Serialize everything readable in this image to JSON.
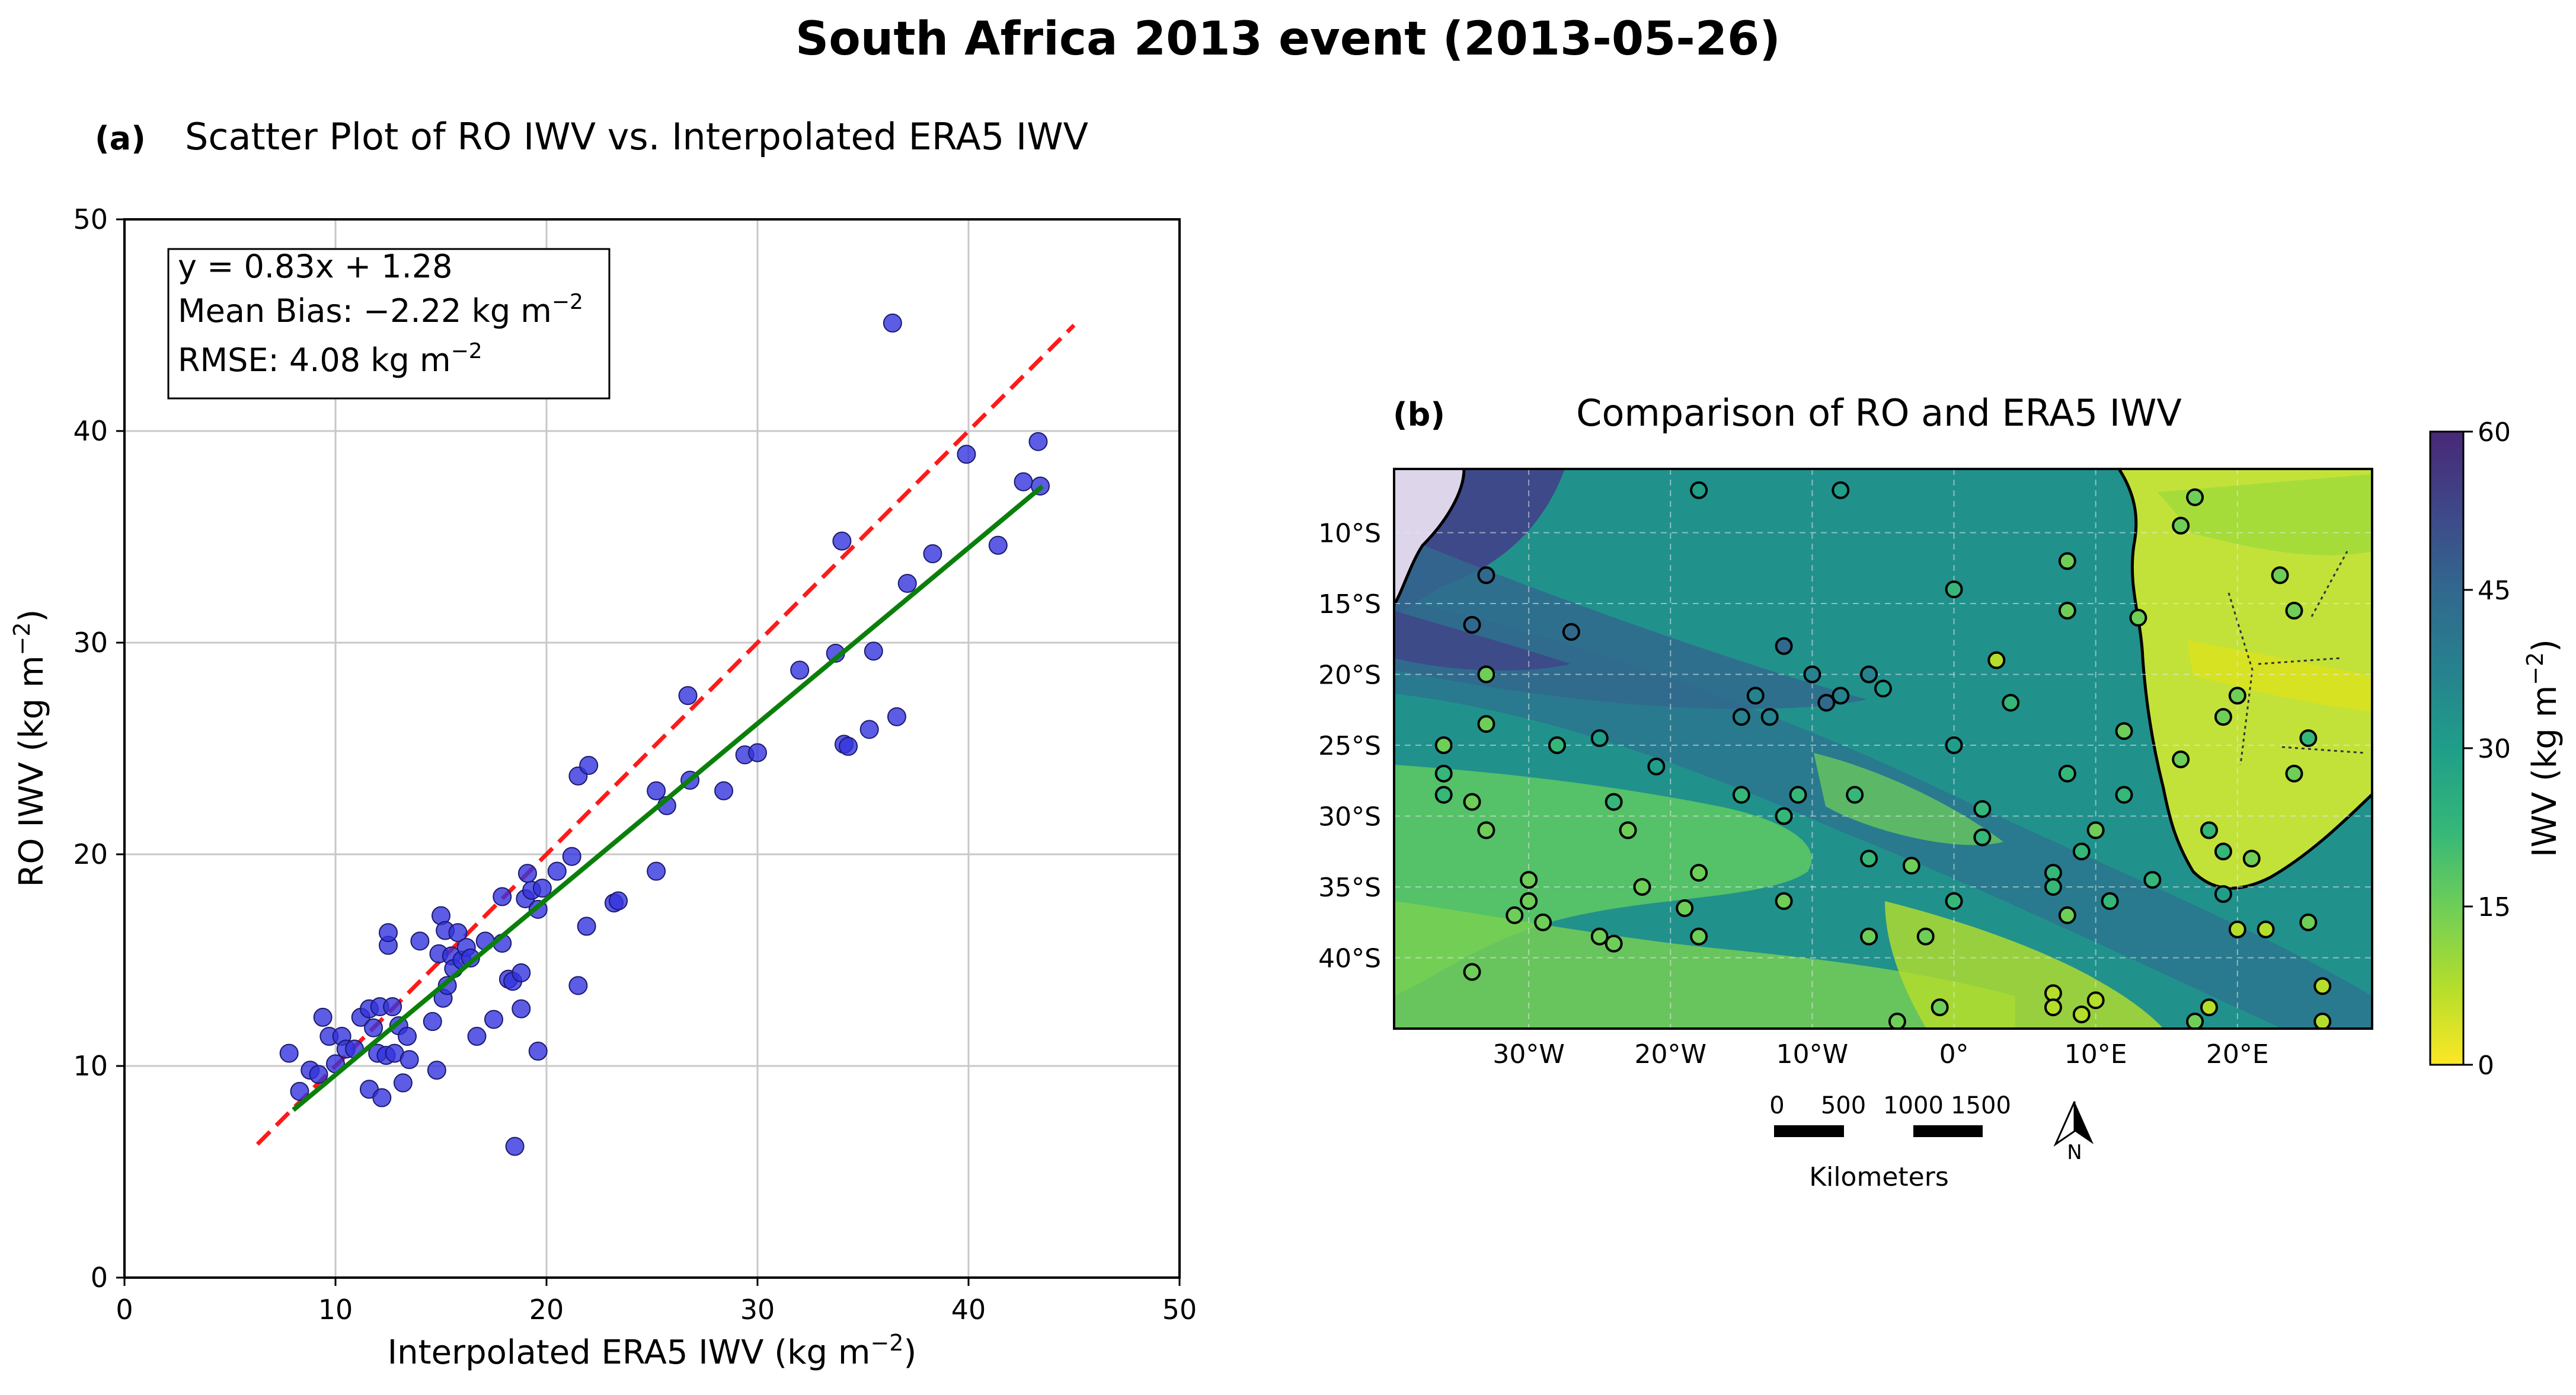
{
  "figure": {
    "title": "South Africa 2013 event (2013-05-26)"
  },
  "colors": {
    "points": "#3333dd",
    "fit_line": "#0a7f0a",
    "one_to_one": "#ff1a1a",
    "grid": "#c8c8c8"
  },
  "panel_a": {
    "panel_label": "(a)",
    "subtitle": "Scatter Plot of RO IWV vs. Interpolated ERA5 IWV",
    "stats": {
      "equation": "y = 0.83x + 1.28",
      "bias_label": "Mean Bias: −2.22 kg m",
      "rmse_label": "RMSE: 4.08 kg m",
      "unit_exponent": "−2"
    }
  },
  "panel_b": {
    "panel_label": "(b)",
    "subtitle": "Comparison of RO and ERA5 IWV",
    "colorbar": {
      "label": "IWV (kg m",
      "label_exponent": "−2",
      "label_close": ")",
      "ticks": [
        "0",
        "15",
        "30",
        "45",
        "60"
      ],
      "min": 0,
      "max": 60,
      "colors": [
        "#fde725",
        "#b5de2b",
        "#6ece58",
        "#35b779",
        "#1f9e89",
        "#26828e",
        "#31688e",
        "#3e4989",
        "#482878",
        "#440154"
      ]
    },
    "lat_ticks": [
      "10°S",
      "15°S",
      "20°S",
      "25°S",
      "30°S",
      "35°S",
      "40°S"
    ],
    "lon_ticks": [
      "30°W",
      "20°W",
      "10°W",
      "0°",
      "10°E",
      "20°E"
    ],
    "scale_bar": {
      "labels": [
        "0",
        "500",
        "1000",
        "1500"
      ],
      "unit": "Kilometers"
    },
    "north_arrow": {
      "label": "N"
    },
    "ro_points": [
      {
        "lon": -18,
        "lat": -7,
        "value": 28
      },
      {
        "lon": -8,
        "lat": -7,
        "value": 27
      },
      {
        "lon": -33,
        "lat": -13,
        "value": 38
      },
      {
        "lon": -34,
        "lat": -16.5,
        "value": 40
      },
      {
        "lon": -27,
        "lat": -17,
        "value": 39
      },
      {
        "lon": -33,
        "lat": -20,
        "value": 16
      },
      {
        "lon": -12,
        "lat": -18,
        "value": 36
      },
      {
        "lon": -10,
        "lat": -20,
        "value": 33
      },
      {
        "lon": -6,
        "lat": -20,
        "value": 30
      },
      {
        "lon": -5,
        "lat": -21,
        "value": 28
      },
      {
        "lon": -9,
        "lat": -22,
        "value": 36
      },
      {
        "lon": -14,
        "lat": -21.5,
        "value": 34
      },
      {
        "lon": -15,
        "lat": -23,
        "value": 32
      },
      {
        "lon": -13,
        "lat": -23,
        "value": 33
      },
      {
        "lon": -8,
        "lat": -21.5,
        "value": 35
      },
      {
        "lon": 0,
        "lat": -14,
        "value": 22
      },
      {
        "lon": 8,
        "lat": -12,
        "value": 14
      },
      {
        "lon": 8,
        "lat": -15.5,
        "value": 14
      },
      {
        "lon": 3,
        "lat": -19,
        "value": 8
      },
      {
        "lon": 4,
        "lat": -22,
        "value": 22
      },
      {
        "lon": 0,
        "lat": -25,
        "value": 26
      },
      {
        "lon": -33,
        "lat": -23.5,
        "value": 16
      },
      {
        "lon": -28,
        "lat": -25,
        "value": 22
      },
      {
        "lon": -25,
        "lat": -24.5,
        "value": 26
      },
      {
        "lon": -36,
        "lat": -25,
        "value": 15
      },
      {
        "lon": -36,
        "lat": -27,
        "value": 18
      },
      {
        "lon": -21,
        "lat": -26.5,
        "value": 25
      },
      {
        "lon": -36,
        "lat": -28.5,
        "value": 18
      },
      {
        "lon": -34,
        "lat": -29,
        "value": 17
      },
      {
        "lon": -24,
        "lat": -29,
        "value": 18
      },
      {
        "lon": -15,
        "lat": -28.5,
        "value": 19
      },
      {
        "lon": -11,
        "lat": -28.5,
        "value": 21
      },
      {
        "lon": -12,
        "lat": -30,
        "value": 20
      },
      {
        "lon": -7,
        "lat": -28.5,
        "value": 19
      },
      {
        "lon": -33,
        "lat": -31,
        "value": 15
      },
      {
        "lon": -23,
        "lat": -31,
        "value": 15
      },
      {
        "lon": 8,
        "lat": -27,
        "value": 22
      },
      {
        "lon": 12,
        "lat": -24,
        "value": 15
      },
      {
        "lon": 12,
        "lat": -28.5,
        "value": 20
      },
      {
        "lon": 10,
        "lat": -31,
        "value": 17
      },
      {
        "lon": 2,
        "lat": -29.5,
        "value": 19
      },
      {
        "lon": 2,
        "lat": -31.5,
        "value": 18
      },
      {
        "lon": 16,
        "lat": -26,
        "value": 14
      },
      {
        "lon": 18,
        "lat": -31,
        "value": 18
      },
      {
        "lon": 19,
        "lat": -32.5,
        "value": 21
      },
      {
        "lon": 19,
        "lat": -35.5,
        "value": 26
      },
      {
        "lon": 21,
        "lat": -33,
        "value": 17
      },
      {
        "lon": 14,
        "lat": -34.5,
        "value": 19
      },
      {
        "lon": 9,
        "lat": -32.5,
        "value": 21
      },
      {
        "lon": 7,
        "lat": -34,
        "value": 19
      },
      {
        "lon": 7,
        "lat": -35,
        "value": 20
      },
      {
        "lon": 11,
        "lat": -36,
        "value": 19
      },
      {
        "lon": 8,
        "lat": -37,
        "value": 15
      },
      {
        "lon": -6,
        "lat": -33,
        "value": 18
      },
      {
        "lon": -3,
        "lat": -33.5,
        "value": 17
      },
      {
        "lon": 0,
        "lat": -36,
        "value": 18
      },
      {
        "lon": -18,
        "lat": -34,
        "value": 13
      },
      {
        "lon": -19,
        "lat": -36.5,
        "value": 13
      },
      {
        "lon": -22,
        "lat": -35,
        "value": 14
      },
      {
        "lon": -18,
        "lat": -38.5,
        "value": 12
      },
      {
        "lon": -12,
        "lat": -36,
        "value": 16
      },
      {
        "lon": -30,
        "lat": -34.5,
        "value": 13
      },
      {
        "lon": -30,
        "lat": -36,
        "value": 14
      },
      {
        "lon": -31,
        "lat": -37,
        "value": 12
      },
      {
        "lon": -29,
        "lat": -37.5,
        "value": 13
      },
      {
        "lon": -25,
        "lat": -38.5,
        "value": 13
      },
      {
        "lon": -24,
        "lat": -39,
        "value": 12
      },
      {
        "lon": -34,
        "lat": -41,
        "value": 12
      },
      {
        "lon": -6,
        "lat": -38.5,
        "value": 14
      },
      {
        "lon": -2,
        "lat": -38.5,
        "value": 14
      },
      {
        "lon": 20,
        "lat": -38,
        "value": 9
      },
      {
        "lon": 22,
        "lat": -38,
        "value": 10
      },
      {
        "lon": 25,
        "lat": -37.5,
        "value": 12
      },
      {
        "lon": 26,
        "lat": -42,
        "value": 11
      },
      {
        "lon": 26,
        "lat": -44.5,
        "value": 11
      },
      {
        "lon": 7,
        "lat": -42.5,
        "value": 9
      },
      {
        "lon": 7,
        "lat": -43.5,
        "value": 10
      },
      {
        "lon": 9,
        "lat": -44,
        "value": 10
      },
      {
        "lon": 10,
        "lat": -43,
        "value": 11
      },
      {
        "lon": 17,
        "lat": -44.5,
        "value": 12
      },
      {
        "lon": 18,
        "lat": -43.5,
        "value": 11
      },
      {
        "lon": -4,
        "lat": -44.5,
        "value": 12
      },
      {
        "lon": -1,
        "lat": -43.5,
        "value": 13
      },
      {
        "lon": 17,
        "lat": -7.5,
        "value": 15
      },
      {
        "lon": 23,
        "lat": -13,
        "value": 17
      },
      {
        "lon": 24,
        "lat": -15.5,
        "value": 16
      },
      {
        "lon": 20,
        "lat": -21.5,
        "value": 12
      },
      {
        "lon": 19,
        "lat": -23,
        "value": 13
      },
      {
        "lon": 25,
        "lat": -24.5,
        "value": 18
      },
      {
        "lon": 24,
        "lat": -27,
        "value": 16
      },
      {
        "lon": 13,
        "lat": -16,
        "value": 14
      },
      {
        "lon": 16,
        "lat": -9.5,
        "value": 16
      }
    ]
  },
  "chart_data": [
    {
      "type": "scatter",
      "panel": "(a)",
      "title": "Scatter Plot of RO IWV vs. Interpolated ERA5 IWV",
      "xlabel": "Interpolated ERA5 IWV (kg m",
      "ylabel": "RO IWV (kg m",
      "label_exponent": "−2",
      "label_close": ")",
      "xlim": [
        0,
        50
      ],
      "ylim": [
        0,
        50
      ],
      "xticks": [
        0,
        10,
        20,
        30,
        40,
        50
      ],
      "yticks": [
        0,
        10,
        20,
        30,
        40,
        50
      ],
      "grid": true,
      "fit_line": {
        "slope": 0.83,
        "intercept": 1.28,
        "x_range": [
          8,
          43.5
        ]
      },
      "one_to_one_line": {
        "x_range": [
          6.3,
          45
        ]
      },
      "points": [
        [
          7.8,
          10.6
        ],
        [
          8.3,
          8.8
        ],
        [
          8.8,
          9.8
        ],
        [
          9.2,
          9.6
        ],
        [
          9.4,
          12.3
        ],
        [
          9.7,
          11.4
        ],
        [
          10.0,
          10.1
        ],
        [
          10.3,
          11.4
        ],
        [
          10.5,
          10.8
        ],
        [
          10.9,
          10.8
        ],
        [
          11.2,
          12.3
        ],
        [
          11.6,
          12.7
        ],
        [
          11.6,
          8.9
        ],
        [
          11.8,
          11.8
        ],
        [
          12.0,
          10.6
        ],
        [
          12.1,
          12.8
        ],
        [
          12.2,
          8.5
        ],
        [
          12.4,
          10.5
        ],
        [
          12.5,
          15.7
        ],
        [
          12.5,
          16.3
        ],
        [
          12.7,
          12.8
        ],
        [
          12.8,
          10.6
        ],
        [
          13.0,
          11.9
        ],
        [
          13.2,
          9.2
        ],
        [
          13.4,
          11.4
        ],
        [
          13.5,
          10.3
        ],
        [
          14.0,
          15.9
        ],
        [
          14.6,
          12.1
        ],
        [
          14.8,
          9.8
        ],
        [
          14.9,
          15.3
        ],
        [
          15.0,
          17.1
        ],
        [
          15.1,
          13.2
        ],
        [
          15.2,
          16.4
        ],
        [
          15.3,
          13.8
        ],
        [
          15.5,
          15.2
        ],
        [
          15.6,
          14.6
        ],
        [
          15.8,
          16.3
        ],
        [
          16.0,
          15.0
        ],
        [
          16.2,
          15.6
        ],
        [
          16.4,
          15.1
        ],
        [
          16.7,
          11.4
        ],
        [
          17.1,
          15.9
        ],
        [
          17.5,
          12.2
        ],
        [
          17.9,
          15.8
        ],
        [
          17.9,
          18.0
        ],
        [
          18.2,
          14.1
        ],
        [
          18.4,
          14.0
        ],
        [
          18.5,
          6.2
        ],
        [
          18.8,
          14.4
        ],
        [
          18.8,
          12.7
        ],
        [
          19.0,
          17.9
        ],
        [
          19.1,
          19.1
        ],
        [
          19.3,
          18.3
        ],
        [
          19.6,
          10.7
        ],
        [
          19.6,
          17.4
        ],
        [
          19.8,
          18.4
        ],
        [
          20.5,
          19.2
        ],
        [
          21.2,
          19.9
        ],
        [
          21.5,
          13.8
        ],
        [
          21.5,
          23.7
        ],
        [
          21.9,
          16.6
        ],
        [
          22.0,
          24.2
        ],
        [
          23.2,
          17.7
        ],
        [
          23.4,
          17.8
        ],
        [
          25.2,
          23.0
        ],
        [
          25.2,
          19.2
        ],
        [
          25.7,
          22.3
        ],
        [
          26.7,
          27.5
        ],
        [
          26.8,
          23.5
        ],
        [
          28.4,
          23.0
        ],
        [
          29.4,
          24.7
        ],
        [
          30.0,
          24.8
        ],
        [
          32.0,
          28.7
        ],
        [
          33.7,
          29.5
        ],
        [
          34.0,
          34.8
        ],
        [
          34.1,
          25.2
        ],
        [
          34.3,
          25.1
        ],
        [
          35.3,
          25.9
        ],
        [
          35.5,
          29.6
        ],
        [
          36.4,
          45.1
        ],
        [
          36.6,
          26.5
        ],
        [
          37.1,
          32.8
        ],
        [
          38.3,
          34.2
        ],
        [
          39.9,
          38.9
        ],
        [
          41.4,
          34.6
        ],
        [
          42.6,
          37.6
        ],
        [
          43.3,
          39.5
        ],
        [
          43.4,
          37.4
        ]
      ]
    }
  ]
}
